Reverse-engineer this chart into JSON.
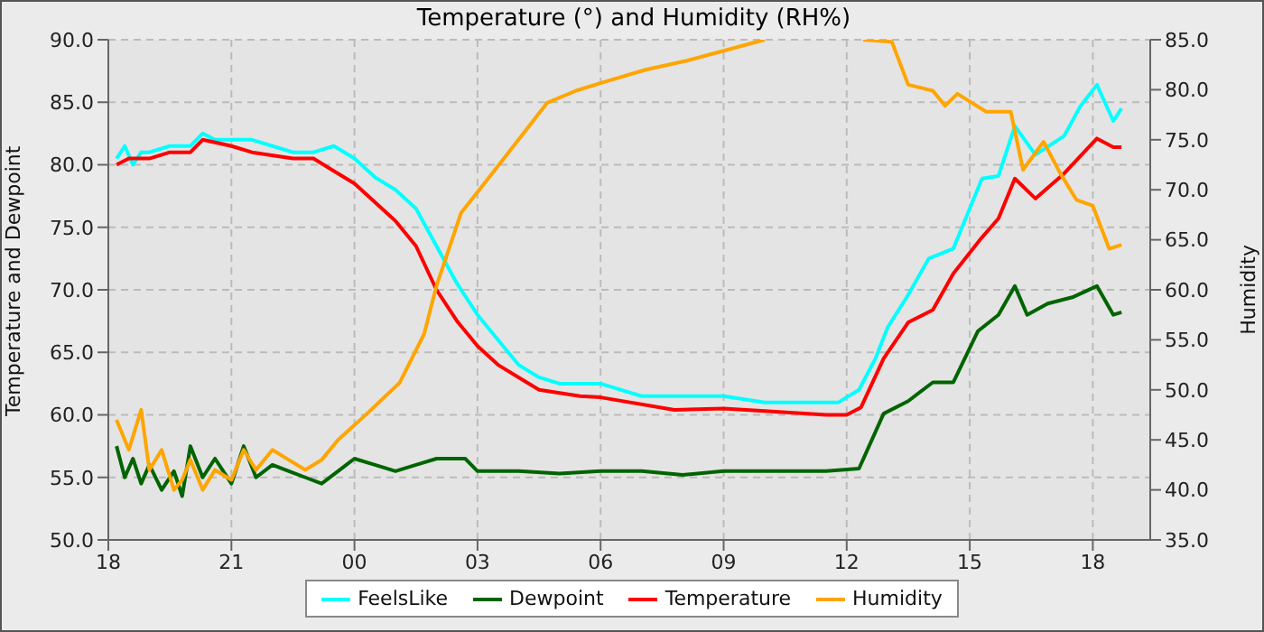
{
  "chart_data": {
    "type": "line",
    "title": "Temperature (°) and Humidity (RH%)",
    "ylabel": "Temperature and Dewpoint",
    "y2label": "Humidity",
    "xlim": [
      18,
      43.4
    ],
    "xticks": [
      {
        "value": 18,
        "label": "18"
      },
      {
        "value": 21,
        "label": "21"
      },
      {
        "value": 24,
        "label": "00"
      },
      {
        "value": 27,
        "label": "03"
      },
      {
        "value": 30,
        "label": "06"
      },
      {
        "value": 33,
        "label": "09"
      },
      {
        "value": 36,
        "label": "12"
      },
      {
        "value": 39,
        "label": "15"
      },
      {
        "value": 42,
        "label": "18"
      }
    ],
    "ylim": [
      50,
      90
    ],
    "yticks": [
      {
        "value": 50,
        "label": "50.0"
      },
      {
        "value": 55,
        "label": "55.0"
      },
      {
        "value": 60,
        "label": "60.0"
      },
      {
        "value": 65,
        "label": "65.0"
      },
      {
        "value": 70,
        "label": "70.0"
      },
      {
        "value": 75,
        "label": "75.0"
      },
      {
        "value": 80,
        "label": "80.0"
      },
      {
        "value": 85,
        "label": "85.0"
      },
      {
        "value": 90,
        "label": "90.0"
      }
    ],
    "y2lim": [
      35,
      85
    ],
    "y2ticks": [
      {
        "value": 35,
        "label": "35.0"
      },
      {
        "value": 40,
        "label": "40.0"
      },
      {
        "value": 45,
        "label": "45.0"
      },
      {
        "value": 50,
        "label": "50.0"
      },
      {
        "value": 55,
        "label": "55.0"
      },
      {
        "value": 60,
        "label": "60.0"
      },
      {
        "value": 65,
        "label": "65.0"
      },
      {
        "value": 70,
        "label": "70.0"
      },
      {
        "value": 75,
        "label": "75.0"
      },
      {
        "value": 80,
        "label": "80.0"
      },
      {
        "value": 85,
        "label": "85.0"
      }
    ],
    "grid": true,
    "legend": "bottom",
    "marker": "none",
    "line_style": "solid",
    "series": [
      {
        "name": "FeelsLike",
        "color": "#00ffff",
        "x": [
          18.2,
          18.4,
          18.6,
          18.8,
          19,
          19.5,
          20,
          20.3,
          20.6,
          21,
          21.5,
          22,
          22.5,
          23,
          23.5,
          24,
          24.5,
          25,
          25.5,
          26,
          26.5,
          27,
          27.5,
          28,
          28.5,
          29,
          30,
          30.5,
          31,
          32,
          33,
          34,
          35,
          35.8,
          36.3,
          36.7,
          37,
          37.5,
          38,
          38.6,
          39.3,
          39.7,
          40.1,
          40.6,
          41.3,
          41.7,
          42.1,
          42.5,
          42.7
        ],
        "values": [
          80.5,
          81.5,
          80,
          81,
          81,
          81.5,
          81.5,
          82.5,
          82,
          82,
          82,
          81.5,
          81,
          81,
          81.5,
          80.5,
          79,
          78,
          76.5,
          73.5,
          70.5,
          68,
          66,
          64,
          63,
          62.5,
          62.5,
          62,
          61.5,
          61.5,
          61.5,
          61,
          61,
          61,
          62,
          64.5,
          67,
          69.6,
          72.5,
          73.3,
          78.9,
          79.1,
          83.1,
          80.8,
          82.3,
          84.7,
          86.4,
          83.5,
          84.5
        ]
      },
      {
        "name": "Dewpoint",
        "color": "#006400",
        "x": [
          18.2,
          18.4,
          18.6,
          18.8,
          19,
          19.3,
          19.6,
          19.8,
          20,
          20.3,
          20.6,
          21,
          21.3,
          21.6,
          22,
          22.4,
          22.8,
          23.2,
          23.6,
          24,
          24.5,
          25,
          25.5,
          26,
          26.7,
          27,
          28,
          29,
          30,
          31,
          32,
          33,
          34,
          35.5,
          36.3,
          36.9,
          37.5,
          38.1,
          38.6,
          39.2,
          39.7,
          40.1,
          40.4,
          40.9,
          41.5,
          42.1,
          42.5,
          42.7
        ],
        "values": [
          57.5,
          55,
          56.5,
          54.5,
          56,
          54,
          55.5,
          53.5,
          57.5,
          55,
          56.5,
          54.5,
          57.5,
          55,
          56,
          55.5,
          55,
          54.5,
          55.5,
          56.5,
          56,
          55.5,
          56,
          56.5,
          56.5,
          55.5,
          55.5,
          55.3,
          55.5,
          55.5,
          55.2,
          55.5,
          55.5,
          55.5,
          55.7,
          60.1,
          61.1,
          62.6,
          62.6,
          66.7,
          68,
          70.3,
          68,
          68.9,
          69.4,
          70.3,
          68,
          68.2
        ]
      },
      {
        "name": "Temperature",
        "color": "#ff0000",
        "x": [
          18.2,
          18.5,
          19,
          19.5,
          20,
          20.3,
          21,
          21.5,
          22.5,
          23,
          23.5,
          24,
          24.5,
          25,
          25.5,
          26,
          26.5,
          27,
          27.5,
          28,
          28.5,
          29.5,
          30,
          31.8,
          33,
          34,
          35.5,
          36,
          36.35,
          36.9,
          37.5,
          38.1,
          38.6,
          39.3,
          39.7,
          40.1,
          40.6,
          41.3,
          42.1,
          42.5,
          42.7
        ],
        "values": [
          80,
          80.5,
          80.5,
          81,
          81,
          82,
          81.5,
          81,
          80.5,
          80.5,
          79.5,
          78.5,
          77,
          75.5,
          73.5,
          70,
          67.5,
          65.5,
          64,
          63,
          62,
          61.5,
          61.4,
          60.4,
          60.5,
          60.3,
          60,
          60,
          60.6,
          64.5,
          67.4,
          68.4,
          71.3,
          74.2,
          75.7,
          78.9,
          77.3,
          79.3,
          82.1,
          81.4,
          81.4
        ]
      },
      {
        "name": "Humidity",
        "color": "#ffa500",
        "axis": "y2",
        "x": [
          18.2,
          18.5,
          18.8,
          19,
          19.3,
          19.6,
          19.8,
          20,
          20.3,
          20.6,
          21,
          21.3,
          21.6,
          22,
          22.4,
          22.8,
          23.2,
          23.6,
          24.3,
          25.1,
          25.7,
          26,
          26.6,
          27.2,
          28,
          28.7,
          29.4,
          30.1,
          31.1,
          32.1,
          34,
          35,
          36.4,
          37.1,
          37.5,
          38.1,
          38.4,
          38.7,
          39.4,
          40,
          40.3,
          40.8,
          41.2,
          41.6,
          42,
          42.4,
          42.7
        ],
        "values": [
          47,
          44,
          48,
          42,
          44,
          40,
          41,
          43,
          40,
          42,
          41,
          44,
          42,
          44,
          43,
          42,
          43,
          45,
          47.6,
          50.7,
          55.6,
          60.4,
          67.7,
          70.8,
          75,
          78.7,
          79.9,
          80.8,
          82,
          82.9,
          85,
          null,
          85,
          84.8,
          80.5,
          79.9,
          78.4,
          79.6,
          77.8,
          77.8,
          72,
          74.8,
          71.7,
          69,
          68.4,
          64.1,
          64.5
        ]
      }
    ]
  }
}
